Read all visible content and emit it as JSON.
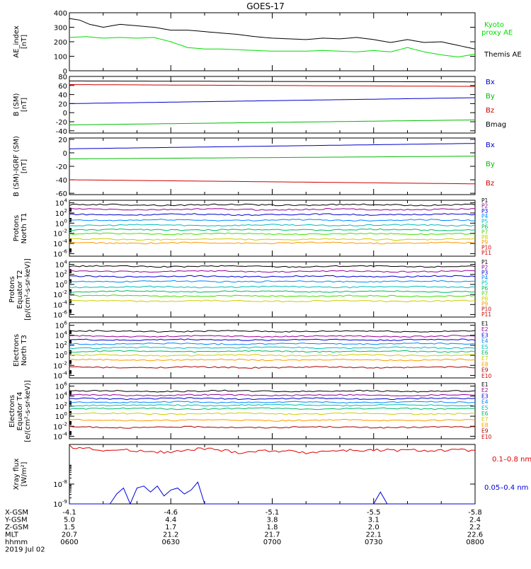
{
  "title": "GOES-17",
  "date_label": "2019 Jul 02",
  "chart_data": [
    {
      "type": "line",
      "panel": "ae",
      "ylabel": "AE_index\n[nT]",
      "ylim": [
        0,
        400
      ],
      "yticks": [
        0,
        100,
        200,
        300,
        400
      ],
      "series": [
        {
          "name": "Kyoto\nproxy AE",
          "color": "#00dd00",
          "x": [
            0,
            5,
            10,
            15,
            20,
            25,
            30,
            35,
            40,
            45,
            50,
            55,
            60,
            65,
            70,
            75,
            80,
            85,
            90,
            95,
            100,
            105,
            110,
            115,
            120
          ],
          "values": [
            230,
            235,
            225,
            230,
            225,
            230,
            200,
            160,
            150,
            150,
            145,
            140,
            135,
            135,
            135,
            140,
            135,
            130,
            140,
            130,
            160,
            130,
            110,
            95,
            115
          ]
        },
        {
          "name": "Themis AE",
          "color": "#000000",
          "x": [
            0,
            3,
            6,
            10,
            15,
            20,
            25,
            30,
            35,
            40,
            45,
            50,
            55,
            60,
            65,
            70,
            75,
            80,
            85,
            90,
            95,
            100,
            105,
            110,
            115,
            120
          ],
          "values": [
            360,
            350,
            320,
            300,
            320,
            310,
            300,
            280,
            280,
            270,
            260,
            250,
            235,
            225,
            220,
            215,
            225,
            220,
            230,
            215,
            195,
            215,
            195,
            200,
            175,
            150
          ]
        }
      ]
    },
    {
      "type": "line",
      "panel": "bsm",
      "ylabel": "B (SM)\n[nT]",
      "ylim": [
        -45,
        80
      ],
      "yticks": [
        -40,
        -20,
        0,
        20,
        40,
        60,
        80
      ],
      "series": [
        {
          "name": "Bx",
          "color": "#0000cc",
          "x": [
            0,
            120
          ],
          "values": [
            20,
            33
          ]
        },
        {
          "name": "By",
          "color": "#00bb00",
          "x": [
            0,
            120
          ],
          "values": [
            -27,
            -16
          ]
        },
        {
          "name": "Bz",
          "color": "#cc0000",
          "x": [
            0,
            120
          ],
          "values": [
            62,
            58
          ]
        },
        {
          "name": "Bmag",
          "color": "#000000",
          "x": [
            0,
            120
          ],
          "values": [
            70,
            68
          ]
        }
      ]
    },
    {
      "type": "line",
      "panel": "bigrf",
      "ylabel": "B (SM)-IGRF (SM)\n[nT]",
      "ylim": [
        -62,
        22
      ],
      "yticks": [
        -60,
        -40,
        -20,
        0,
        20
      ],
      "series": [
        {
          "name": "Bx",
          "color": "#0000cc",
          "x": [
            0,
            120
          ],
          "values": [
            6,
            14
          ]
        },
        {
          "name": "By",
          "color": "#00bb00",
          "x": [
            0,
            120
          ],
          "values": [
            -9,
            -5
          ]
        },
        {
          "name": "Bz",
          "color": "#cc0000",
          "x": [
            0,
            120
          ],
          "values": [
            -40,
            -46
          ]
        }
      ]
    },
    {
      "type": "line",
      "panel": "protons_t1",
      "ylabel": "Protons\nNorth T1",
      "log_ylim": [
        -6.5,
        4.5
      ],
      "ytick_exponents": [
        -6,
        -4,
        -2,
        0,
        2,
        4
      ],
      "series": [
        {
          "name": "P1",
          "color": "#000000",
          "log_values": [
            3.6
          ]
        },
        {
          "name": "P2",
          "color": "#990099",
          "log_values": [
            2.7
          ]
        },
        {
          "name": "P3",
          "color": "#0000cc",
          "log_values": [
            1.7
          ]
        },
        {
          "name": "P4",
          "color": "#0088ff",
          "log_values": [
            0.6
          ]
        },
        {
          "name": "P5",
          "color": "#00bbbb",
          "log_values": [
            -0.4
          ]
        },
        {
          "name": "P6",
          "color": "#00bb66",
          "log_values": [
            -1.3
          ]
        },
        {
          "name": "P7",
          "color": "#44dd00",
          "log_values": [
            -2.1
          ]
        },
        {
          "name": "P8",
          "color": "#cccc00",
          "log_values": [
            -3.2
          ]
        },
        {
          "name": "P9",
          "color": "#ff9900",
          "log_values": [
            -3.9
          ]
        }
      ]
    },
    {
      "type": "line",
      "panel": "protons_t2",
      "ylabel": "Protons\nEquator T2\n[p/(cm²-s-sr-keV)]",
      "log_ylim": [
        -6.5,
        4.5
      ],
      "ytick_exponents": [
        -6,
        -4,
        -2,
        0,
        2,
        4
      ],
      "series": [
        {
          "name": "P1",
          "color": "#000000",
          "log_values": [
            3.6
          ]
        },
        {
          "name": "P2",
          "color": "#990099",
          "log_values": [
            2.6
          ]
        },
        {
          "name": "P3",
          "color": "#0000cc",
          "log_values": [
            1.6
          ]
        },
        {
          "name": "P4",
          "color": "#0088ff",
          "log_values": [
            0.6
          ]
        },
        {
          "name": "P5",
          "color": "#00bbbb",
          "log_values": [
            -0.5
          ]
        },
        {
          "name": "P6",
          "color": "#00bb66",
          "log_values": [
            -1.4
          ]
        },
        {
          "name": "P7",
          "color": "#44dd00",
          "log_values": [
            -2.3
          ]
        },
        {
          "name": "P8",
          "color": "#cccc00",
          "log_values": [
            -3.3
          ]
        }
      ]
    },
    {
      "type": "line",
      "panel": "electrons_t3",
      "ylabel": "Electrons\nNorth T3",
      "log_ylim": [
        -4.5,
        6.5
      ],
      "ytick_exponents": [
        -4,
        -2,
        0,
        2,
        4,
        6
      ],
      "series": [
        {
          "name": "E1",
          "color": "#000000",
          "log_values": [
            4.8
          ]
        },
        {
          "name": "E2",
          "color": "#990099",
          "log_values": [
            3.8
          ]
        },
        {
          "name": "E3",
          "color": "#0000cc",
          "log_values": [
            3.1
          ]
        },
        {
          "name": "E4",
          "color": "#0088ff",
          "log_values": [
            2.3
          ]
        },
        {
          "name": "E5",
          "color": "#00bbbb",
          "log_values": [
            1.5
          ]
        },
        {
          "name": "E6",
          "color": "#00bb66",
          "log_values": [
            0.8
          ]
        },
        {
          "name": "E7",
          "color": "#cccc00",
          "log_values": [
            0.0
          ]
        },
        {
          "name": "E8",
          "color": "#ff9900",
          "log_values": [
            -0.9
          ]
        },
        {
          "name": "E9",
          "color": "#aa0000",
          "log_values": [
            -2.4
          ]
        }
      ]
    },
    {
      "type": "line",
      "panel": "electrons_t4",
      "ylabel": "Electrons\nEquator T4\n[e/(cm²-s-sr-keV)]",
      "log_ylim": [
        -4.5,
        6.5
      ],
      "ytick_exponents": [
        -4,
        -2,
        0,
        2,
        4,
        6
      ],
      "series": [
        {
          "name": "E1",
          "color": "#000000",
          "log_values": [
            5.0
          ]
        },
        {
          "name": "E2",
          "color": "#990099",
          "log_values": [
            4.2
          ]
        },
        {
          "name": "E3",
          "color": "#0000cc",
          "log_values": [
            3.5
          ]
        },
        {
          "name": "E4",
          "color": "#0088ff",
          "log_values": [
            2.8
          ]
        },
        {
          "name": "E5",
          "color": "#00bbbb",
          "log_values": [
            2.2
          ]
        },
        {
          "name": "E6",
          "color": "#00bb66",
          "log_values": [
            1.5
          ]
        },
        {
          "name": "E7",
          "color": "#cccc00",
          "log_values": [
            0.5
          ]
        },
        {
          "name": "E8",
          "color": "#ff9900",
          "log_values": [
            -0.8
          ]
        },
        {
          "name": "E9",
          "color": "#aa0000",
          "log_values": [
            -2.2
          ]
        }
      ]
    },
    {
      "type": "line",
      "panel": "xray",
      "ylabel": "Xray flux\n[W/m²]",
      "log_ylim": [
        -9,
        -6
      ],
      "ytick_exponents": [
        -9,
        -8
      ],
      "series": [
        {
          "name": "0.1–0.8 nm",
          "color": "#dd0000",
          "x": [
            0,
            10,
            20,
            30,
            40,
            50,
            60,
            70,
            80,
            90,
            100,
            110,
            120
          ],
          "values": [
            -6.1,
            -6.3,
            -6.3,
            -6.4,
            -6.2,
            -6.4,
            -6.3,
            -6.4,
            -6.3,
            -6.3,
            -6.3,
            -6.3,
            -6.3
          ]
        },
        {
          "name": "0.05–0.4 nm",
          "color": "#0000dd",
          "x": [
            0,
            12,
            14,
            16,
            18,
            20,
            22,
            24,
            26,
            28,
            30,
            32,
            34,
            36,
            38,
            40,
            90,
            92,
            94,
            120
          ],
          "values": [
            -9,
            -9,
            -8.5,
            -8.2,
            -9,
            -8.2,
            -8.1,
            -8.4,
            -8.1,
            -8.6,
            -8.3,
            -8.2,
            -8.5,
            -8.3,
            -7.9,
            -9,
            -9,
            -8.4,
            -9,
            -9
          ]
        }
      ]
    }
  ],
  "x_axis": {
    "rows": [
      {
        "label": "X-GSM",
        "values": [
          "-4.1",
          "-4.6",
          "-5.1",
          "-5.5",
          "-5.8"
        ]
      },
      {
        "label": "Y-GSM",
        "values": [
          "5.0",
          "4.4",
          "3.8",
          "3.1",
          "2.4"
        ]
      },
      {
        "label": "Z-GSM",
        "values": [
          "1.5",
          "1.7",
          "1.8",
          "2.0",
          "2.2"
        ]
      },
      {
        "label": "MLT",
        "values": [
          "20.7",
          "21.2",
          "21.7",
          "22.1",
          "22.6"
        ]
      },
      {
        "label": "hhmm",
        "values": [
          "0600",
          "0630",
          "0700",
          "0730",
          "0800"
        ]
      }
    ]
  },
  "particle_labels": {
    "protons": [
      "P1",
      "P2",
      "P3",
      "P4",
      "P5",
      "P6",
      "P7",
      "P8",
      "P9",
      "P10",
      "P11"
    ],
    "electrons": [
      "E1",
      "E2",
      "E3",
      "E4",
      "E5",
      "E6",
      "E7",
      "E8",
      "E9",
      "E10"
    ]
  }
}
